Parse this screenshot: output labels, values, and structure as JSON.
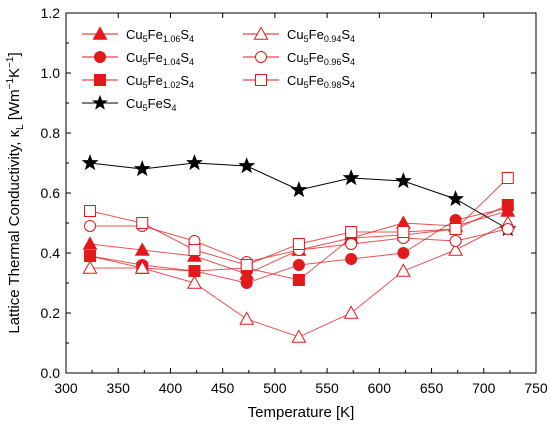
{
  "chart_data": {
    "type": "line",
    "xlabel": "Temperature [K]",
    "ylabel": "Lattice Thermal Conductivity, κ",
    "ylabel_sub": "L",
    "ylabel_unit_pre": " [Wm",
    "ylabel_unit_mid": "K",
    "ylabel_unit_end": "]",
    "ylabel_exp": "−1",
    "xlim": [
      300,
      750
    ],
    "ylim": [
      0.0,
      1.2
    ],
    "xticks": [
      300,
      350,
      400,
      450,
      500,
      550,
      600,
      650,
      700,
      750
    ],
    "yticks": [
      "0.0",
      "0.2",
      "0.4",
      "0.6",
      "0.8",
      "1.0",
      "1.2"
    ],
    "grid": false,
    "legend_position": "top-left",
    "x": [
      323,
      373,
      423,
      473,
      523,
      573,
      623,
      673,
      723
    ],
    "series": [
      {
        "name": "Cu5Fe1.06S4",
        "label": [
          "Cu",
          "5",
          "Fe",
          "1.06",
          "S",
          "4"
        ],
        "marker": "triangle",
        "filled": true,
        "color": "#e31a1c",
        "values": [
          0.43,
          0.41,
          0.39,
          0.33,
          0.41,
          0.45,
          0.5,
          0.49,
          0.54
        ]
      },
      {
        "name": "Cu5Fe1.04S4",
        "label": [
          "Cu",
          "5",
          "Fe",
          "1.04",
          "S",
          "4"
        ],
        "marker": "circle",
        "filled": true,
        "color": "#e31a1c",
        "values": [
          0.39,
          0.36,
          0.34,
          0.3,
          0.36,
          0.38,
          0.4,
          0.51,
          0.55
        ]
      },
      {
        "name": "Cu5Fe1.02S4",
        "label": [
          "Cu",
          "5",
          "Fe",
          "1.02",
          "S",
          "4"
        ],
        "marker": "square",
        "filled": true,
        "color": "#e31a1c",
        "values": [
          0.39,
          0.35,
          0.34,
          0.35,
          0.31,
          0.45,
          0.46,
          0.48,
          0.56
        ]
      },
      {
        "name": "Cu5FeS4",
        "label": [
          "Cu",
          "5",
          "FeS",
          "4",
          "",
          ""
        ],
        "marker": "star",
        "filled": true,
        "color": "#000000",
        "values": [
          0.7,
          0.68,
          0.7,
          0.69,
          0.61,
          0.65,
          0.64,
          0.58,
          0.48
        ]
      },
      {
        "name": "Cu5Fe0.94S4",
        "label": [
          "Cu",
          "5",
          "Fe",
          "0.94",
          "S",
          "4"
        ],
        "marker": "triangle",
        "filled": false,
        "color": "#e31a1c",
        "values": [
          0.35,
          0.35,
          0.3,
          0.18,
          0.12,
          0.2,
          0.34,
          0.41,
          0.5
        ]
      },
      {
        "name": "Cu5Fe0.96S4",
        "label": [
          "Cu",
          "5",
          "Fe",
          "0.96",
          "S",
          "4"
        ],
        "marker": "circle",
        "filled": false,
        "color": "#e31a1c",
        "values": [
          0.49,
          0.49,
          0.44,
          0.37,
          0.41,
          0.43,
          0.45,
          0.44,
          0.48
        ]
      },
      {
        "name": "Cu5Fe0.98S4",
        "label": [
          "Cu",
          "5",
          "Fe",
          "0.98",
          "S",
          "4"
        ],
        "marker": "square",
        "filled": false,
        "color": "#e31a1c",
        "values": [
          0.54,
          0.5,
          0.41,
          0.36,
          0.43,
          0.47,
          0.47,
          0.48,
          0.65
        ]
      }
    ]
  }
}
